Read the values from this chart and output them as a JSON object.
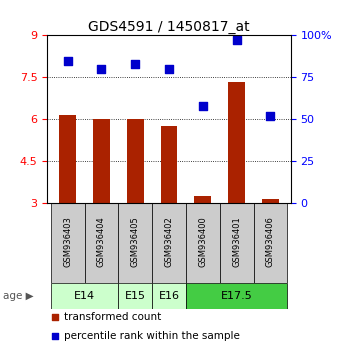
{
  "title": "GDS4591 / 1450817_at",
  "samples": [
    "GSM936403",
    "GSM936404",
    "GSM936405",
    "GSM936402",
    "GSM936400",
    "GSM936401",
    "GSM936406"
  ],
  "transformed_counts": [
    6.15,
    6.0,
    6.0,
    5.75,
    3.25,
    7.35,
    3.15
  ],
  "percentile_ranks": [
    85,
    80,
    83,
    80,
    58,
    97,
    52
  ],
  "age_groups": [
    {
      "label": "E14",
      "samples": [
        "GSM936403",
        "GSM936404"
      ],
      "color": "#ccffcc"
    },
    {
      "label": "E15",
      "samples": [
        "GSM936405"
      ],
      "color": "#ccffcc"
    },
    {
      "label": "E16",
      "samples": [
        "GSM936402"
      ],
      "color": "#ccffcc"
    },
    {
      "label": "E17.5",
      "samples": [
        "GSM936400",
        "GSM936401",
        "GSM936406"
      ],
      "color": "#44cc44"
    }
  ],
  "ylim_left": [
    3,
    9
  ],
  "ylim_right": [
    0,
    100
  ],
  "yticks_left": [
    3,
    4.5,
    6,
    7.5,
    9
  ],
  "yticks_right": [
    0,
    25,
    50,
    75,
    100
  ],
  "ytick_labels_left": [
    "3",
    "4.5",
    "6",
    "7.5",
    "9"
  ],
  "ytick_labels_right": [
    "0",
    "25",
    "50",
    "75",
    "100%"
  ],
  "bar_color": "#aa2200",
  "dot_color": "#0000cc",
  "bar_width": 0.5,
  "dot_size": 35,
  "figsize": [
    3.38,
    3.54
  ],
  "dpi": 100
}
